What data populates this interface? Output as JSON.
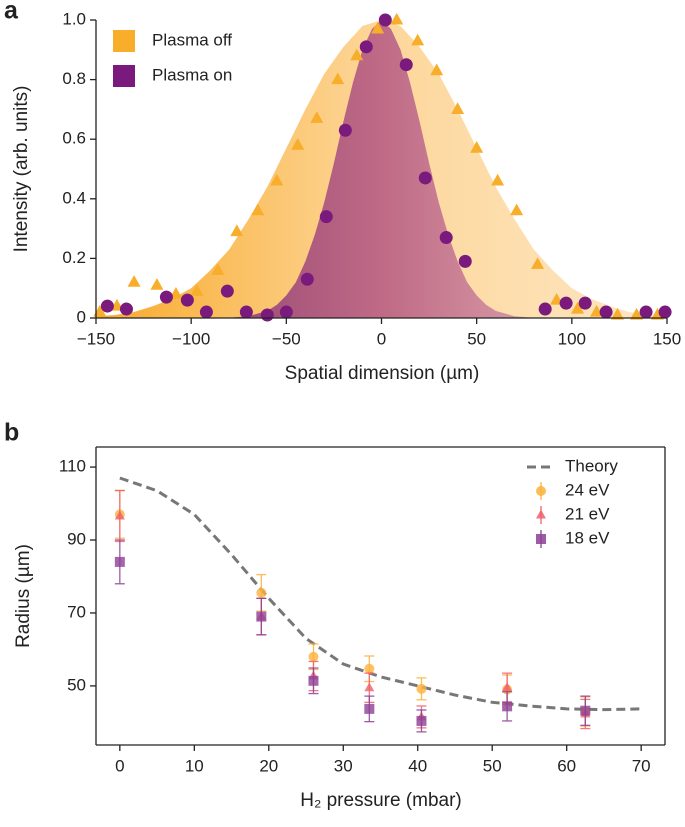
{
  "chart_data": [
    {
      "type": "scatter",
      "label": "a",
      "xlabel": "Spatial dimension (µm)",
      "ylabel": "Intensity (arb. units)",
      "xlim": [
        -150,
        150
      ],
      "ylim": [
        0,
        1
      ],
      "xticks": [
        {
          "value": -150,
          "label": "−150"
        },
        {
          "value": -100,
          "label": "−100"
        },
        {
          "value": -50,
          "label": "−50"
        },
        0,
        50,
        100,
        150
      ],
      "yticks": [
        0,
        0.2,
        0.4,
        0.6,
        0.8,
        {
          "value": 1,
          "label": "1.0"
        }
      ],
      "legend": "upper left",
      "areas": [
        {
          "colors": [
            "#f8aa2c",
            "#fdd79b",
            "#fde6c3"
          ],
          "x": [
            -150,
            -140,
            -130,
            -120,
            -110,
            -100,
            -90,
            -80,
            -70,
            -60,
            -50,
            -40,
            -30,
            -20,
            -10,
            0,
            10,
            20,
            30,
            40,
            50,
            60,
            70,
            80,
            90,
            100,
            110,
            120,
            130,
            140,
            150
          ],
          "values": [
            0.006,
            0.01,
            0.02,
            0.04,
            0.065,
            0.1,
            0.16,
            0.23,
            0.33,
            0.44,
            0.57,
            0.7,
            0.82,
            0.91,
            0.98,
            1,
            0.98,
            0.91,
            0.82,
            0.7,
            0.57,
            0.44,
            0.33,
            0.23,
            0.16,
            0.1,
            0.065,
            0.04,
            0.02,
            0.01,
            0.006
          ]
        },
        {
          "colors": [
            "#7e2f68",
            "#bf6a86",
            "#ebc3c0"
          ],
          "x": [
            -150,
            -80,
            -70,
            -60,
            -55,
            -50,
            -45,
            -40,
            -35,
            -30,
            -25,
            -20,
            -15,
            -10,
            -5,
            0,
            5,
            10,
            15,
            20,
            25,
            30,
            35,
            40,
            45,
            50,
            55,
            60,
            70,
            80,
            150
          ],
          "values": [
            0,
            0.001,
            0.006,
            0.024,
            0.044,
            0.076,
            0.12,
            0.19,
            0.28,
            0.39,
            0.52,
            0.66,
            0.79,
            0.9,
            0.97,
            1,
            0.97,
            0.9,
            0.79,
            0.66,
            0.52,
            0.39,
            0.28,
            0.19,
            0.12,
            0.076,
            0.044,
            0.024,
            0.006,
            0.001,
            0
          ]
        }
      ],
      "series": [
        {
          "name": "Plasma off",
          "color": "#f8ad2b",
          "marker": "triangle",
          "x": [
            -148,
            -139,
            -130,
            -118,
            -108,
            -97,
            -86,
            -76,
            -65,
            -55,
            -44,
            -34,
            -23,
            -13,
            -2,
            8,
            19,
            29,
            40,
            50,
            61,
            71,
            82,
            92,
            103,
            113,
            124,
            134,
            145
          ],
          "values": [
            0.02,
            0.04,
            0.12,
            0.11,
            0.08,
            0.09,
            0.16,
            0.29,
            0.36,
            0.46,
            0.58,
            0.67,
            0.8,
            0.88,
            0.97,
            1.0,
            0.93,
            0.83,
            0.7,
            0.57,
            0.46,
            0.36,
            0.18,
            0.06,
            0.03,
            0.02,
            0.01,
            0.01,
            0.01
          ]
        },
        {
          "name": "Plasma on",
          "color": "#7a1a7c",
          "marker": "circle",
          "x": [
            -144,
            -134,
            -113,
            -102,
            -92,
            -81,
            -71,
            -60,
            -50,
            -39,
            -29,
            -19,
            -8,
            2,
            13,
            23,
            34,
            44,
            86,
            97,
            107,
            118,
            139,
            149
          ],
          "values": [
            0.04,
            0.03,
            0.07,
            0.06,
            0.02,
            0.09,
            0.02,
            0.01,
            0.02,
            0.13,
            0.34,
            0.63,
            0.91,
            1.0,
            0.85,
            0.47,
            0.27,
            0.19,
            0.03,
            0.05,
            0.05,
            0.02,
            0.02,
            0.02
          ]
        }
      ]
    },
    {
      "type": "errorbar",
      "label": "b",
      "xlabel": "H₂ pressure (mbar)",
      "ylabel": "Radius (µm)",
      "xlim": [
        -3.2,
        73.2
      ],
      "ylim": [
        33.8,
        115.5
      ],
      "xticks": [
        0,
        10,
        20,
        30,
        40,
        50,
        60,
        70
      ],
      "yticks": [
        50,
        70,
        90,
        110
      ],
      "legend": "upper right",
      "series": [
        {
          "name": "Theory",
          "color": "#777777",
          "line": "dashed",
          "x": [
            0,
            5,
            10,
            15,
            20,
            25,
            30,
            35,
            40,
            45,
            50,
            55,
            60,
            65,
            70
          ],
          "values": [
            107,
            103.5,
            97,
            86,
            74,
            63,
            56,
            52.5,
            50,
            47.5,
            45.5,
            44.5,
            43.7,
            43.5,
            43.7
          ]
        },
        {
          "name": "24 eV",
          "color": "#fbb13c",
          "marker": "circle",
          "x": [
            0,
            19,
            26,
            33.5,
            40.5,
            52,
            62.5
          ],
          "values": [
            97,
            75.5,
            58,
            54.7,
            49.2,
            49,
            43
          ],
          "errors": [
            6.5,
            5,
            3.5,
            3.5,
            3,
            4,
            4
          ]
        },
        {
          "name": "21 eV",
          "color": "#f0606a",
          "marker": "triangle",
          "x": [
            0,
            19,
            26,
            33.5,
            40.5,
            52,
            62.5
          ],
          "values": [
            96.6,
            69,
            52.7,
            49.5,
            41.5,
            49.5,
            42.3
          ],
          "errors": [
            7,
            5,
            4,
            4,
            3,
            4,
            4
          ]
        },
        {
          "name": "18 eV",
          "color": "#8d3f96",
          "marker": "square",
          "x": [
            0,
            19,
            26,
            33.5,
            40.5,
            52,
            62.5
          ],
          "values": [
            84,
            69,
            51.4,
            43.7,
            40.4,
            44.4,
            43.2
          ],
          "errors": [
            6,
            5,
            3.5,
            3.5,
            3,
            4,
            4
          ]
        }
      ]
    }
  ]
}
